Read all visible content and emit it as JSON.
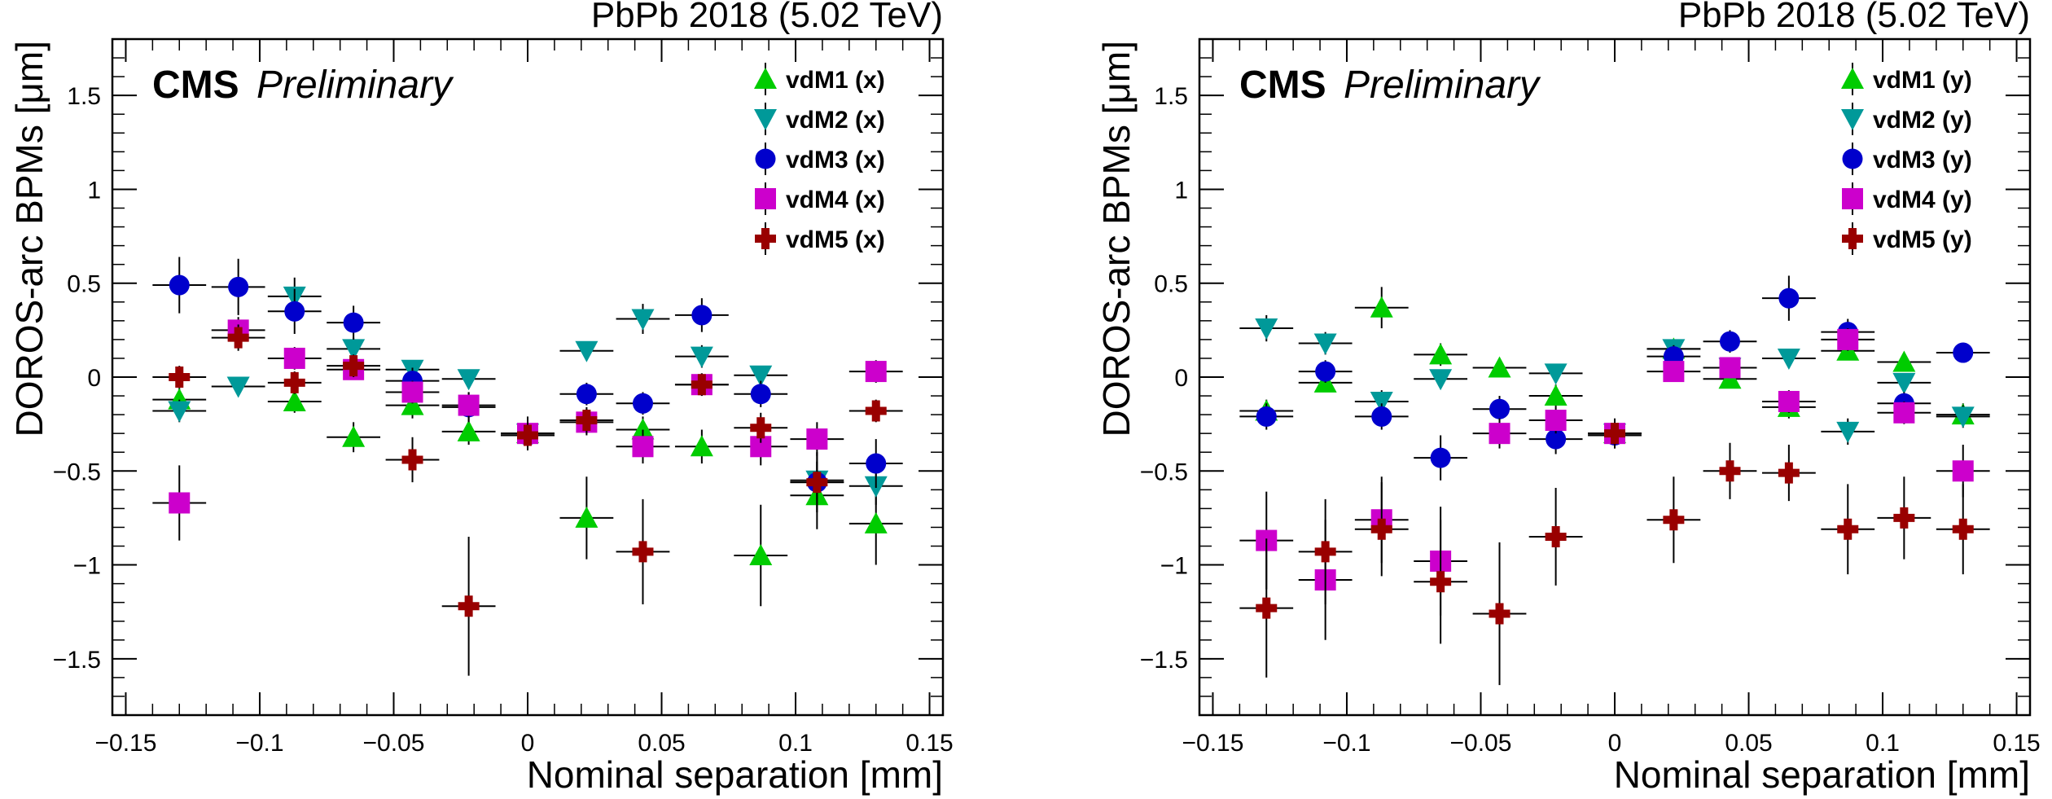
{
  "chart_data": [
    {
      "type": "scatter",
      "top_label": "PbPb 2018 (5.02 TeV)",
      "cms_label": "CMS",
      "preliminary_label": "Preliminary",
      "xlabel": "Nominal separation [mm]",
      "ylabel": "DOROS-arc BPMs [μm]",
      "xlim": [
        -0.155,
        0.155
      ],
      "ylim": [
        -1.8,
        1.8
      ],
      "xticks": [
        -0.15,
        -0.1,
        -0.05,
        0,
        0.05,
        0.1,
        0.15
      ],
      "xtick_labels": [
        "−0.15",
        "−0.1",
        "−0.05",
        "0",
        "0.05",
        "0.1",
        "0.15"
      ],
      "yticks": [
        -1.5,
        -1,
        -0.5,
        0,
        0.5,
        1,
        1.5
      ],
      "ytick_labels": [
        "−1.5",
        "−1",
        "−0.5",
        "0",
        "0.5",
        "1",
        "1.5"
      ],
      "legend_position": "top-right",
      "xerr": 0.01,
      "series": [
        {
          "name": "vdM1 (x)",
          "marker": "triangle-up",
          "color": "#00cc00",
          "points": [
            [
              -0.13,
              -0.12,
              0.06
            ],
            [
              -0.087,
              -0.13,
              0.06
            ],
            [
              -0.065,
              -0.32,
              0.08
            ],
            [
              -0.043,
              -0.15,
              0.07
            ],
            [
              -0.022,
              -0.29,
              0.07
            ],
            [
              0,
              -0.3,
              0.09
            ],
            [
              0.022,
              -0.75,
              0.22
            ],
            [
              0.043,
              -0.28,
              0.07
            ],
            [
              0.065,
              -0.37,
              0.09
            ],
            [
              0.087,
              -0.95,
              0.27
            ],
            [
              0.108,
              -0.63,
              0.18
            ],
            [
              0.13,
              -0.78,
              0.22
            ]
          ]
        },
        {
          "name": "vdM2 (x)",
          "marker": "triangle-down",
          "color": "#009999",
          "points": [
            [
              -0.13,
              -0.18,
              0.06
            ],
            [
              -0.108,
              -0.05,
              0.05
            ],
            [
              -0.087,
              0.43,
              0.1
            ],
            [
              -0.065,
              0.15,
              0.06
            ],
            [
              -0.043,
              0.04,
              0.05
            ],
            [
              -0.022,
              -0.01,
              0.05
            ],
            [
              0,
              -0.3,
              0.07
            ],
            [
              0.022,
              0.14,
              0.05
            ],
            [
              0.043,
              0.31,
              0.08
            ],
            [
              0.065,
              0.11,
              0.06
            ],
            [
              0.087,
              0.01,
              0.05
            ],
            [
              0.108,
              -0.55,
              0.1
            ],
            [
              0.13,
              -0.58,
              0.1
            ]
          ]
        },
        {
          "name": "vdM3 (x)",
          "marker": "circle",
          "color": "#0000cc",
          "points": [
            [
              -0.13,
              0.49,
              0.15
            ],
            [
              -0.108,
              0.48,
              0.15
            ],
            [
              -0.087,
              0.35,
              0.12
            ],
            [
              -0.065,
              0.29,
              0.09
            ],
            [
              -0.043,
              -0.02,
              0.07
            ],
            [
              -0.022,
              -0.16,
              0.08
            ],
            [
              0,
              -0.31,
              0.07
            ],
            [
              0.022,
              -0.09,
              0.06
            ],
            [
              0.043,
              -0.14,
              0.06
            ],
            [
              0.065,
              0.33,
              0.09
            ],
            [
              0.087,
              -0.09,
              0.07
            ],
            [
              0.108,
              -0.56,
              0.16
            ],
            [
              0.13,
              -0.46,
              0.13
            ]
          ]
        },
        {
          "name": "vdM4 (x)",
          "marker": "square",
          "color": "#cc00cc",
          "points": [
            [
              -0.13,
              -0.67,
              0.2
            ],
            [
              -0.108,
              0.25,
              0.07
            ],
            [
              -0.087,
              0.1,
              0.06
            ],
            [
              -0.065,
              0.04,
              0.05
            ],
            [
              -0.043,
              -0.08,
              0.06
            ],
            [
              -0.022,
              -0.15,
              0.07
            ],
            [
              0,
              -0.3,
              0.07
            ],
            [
              0.022,
              -0.24,
              0.07
            ],
            [
              0.043,
              -0.37,
              0.09
            ],
            [
              0.065,
              -0.04,
              0.06
            ],
            [
              0.087,
              -0.37,
              0.1
            ],
            [
              0.108,
              -0.33,
              0.09
            ],
            [
              0.13,
              0.03,
              0.06
            ]
          ]
        },
        {
          "name": "vdM5 (x)",
          "marker": "cross",
          "color": "#990000",
          "points": [
            [
              -0.13,
              0.0,
              0.06
            ],
            [
              -0.108,
              0.21,
              0.07
            ],
            [
              -0.087,
              -0.03,
              0.06
            ],
            [
              -0.065,
              0.06,
              0.06
            ],
            [
              -0.043,
              -0.44,
              0.12
            ],
            [
              -0.022,
              -1.22,
              0.37
            ],
            [
              0,
              -0.31,
              0.08
            ],
            [
              0.022,
              -0.23,
              0.07
            ],
            [
              0.043,
              -0.93,
              0.28
            ],
            [
              0.065,
              -0.04,
              0.06
            ],
            [
              0.087,
              -0.27,
              0.08
            ],
            [
              0.108,
              -0.56,
              0.16
            ],
            [
              0.13,
              -0.18,
              0.06
            ]
          ]
        }
      ]
    },
    {
      "type": "scatter",
      "top_label": "PbPb 2018 (5.02 TeV)",
      "cms_label": "CMS",
      "preliminary_label": "Preliminary",
      "xlabel": "Nominal separation [mm]",
      "ylabel": "DOROS-arc BPMs [μm]",
      "xlim": [
        -0.155,
        0.155
      ],
      "ylim": [
        -1.8,
        1.8
      ],
      "xticks": [
        -0.15,
        -0.1,
        -0.05,
        0,
        0.05,
        0.1,
        0.15
      ],
      "xtick_labels": [
        "−0.15",
        "−0.1",
        "−0.05",
        "0",
        "0.05",
        "0.1",
        "0.15"
      ],
      "yticks": [
        -1.5,
        -1,
        -0.5,
        0,
        0.5,
        1,
        1.5
      ],
      "ytick_labels": [
        "−1.5",
        "−1",
        "−0.5",
        "0",
        "0.5",
        "1",
        "1.5"
      ],
      "legend_position": "top-right",
      "xerr": 0.01,
      "series": [
        {
          "name": "vdM1 (y)",
          "marker": "triangle-up",
          "color": "#00cc00",
          "points": [
            [
              -0.13,
              -0.18,
              0.06
            ],
            [
              -0.108,
              -0.03,
              0.05
            ],
            [
              -0.087,
              0.37,
              0.11
            ],
            [
              -0.065,
              0.12,
              0.06
            ],
            [
              -0.043,
              0.05,
              0.05
            ],
            [
              -0.022,
              -0.1,
              0.06
            ],
            [
              0,
              -0.3,
              0.07
            ],
            [
              0.022,
              0.15,
              0.05
            ],
            [
              0.043,
              -0.01,
              0.05
            ],
            [
              0.065,
              -0.16,
              0.06
            ],
            [
              0.087,
              0.14,
              0.05
            ],
            [
              0.108,
              0.08,
              0.05
            ],
            [
              0.13,
              -0.2,
              0.06
            ]
          ]
        },
        {
          "name": "vdM2 (y)",
          "marker": "triangle-down",
          "color": "#009999",
          "points": [
            [
              -0.13,
              0.26,
              0.07
            ],
            [
              -0.108,
              0.18,
              0.06
            ],
            [
              -0.087,
              -0.13,
              0.06
            ],
            [
              -0.065,
              -0.01,
              0.05
            ],
            [
              -0.022,
              0.02,
              0.05
            ],
            [
              0,
              -0.3,
              0.07
            ],
            [
              0.022,
              0.15,
              0.05
            ],
            [
              0.043,
              0.05,
              0.05
            ],
            [
              0.065,
              0.1,
              0.05
            ],
            [
              0.087,
              -0.29,
              0.07
            ],
            [
              0.108,
              -0.03,
              0.05
            ],
            [
              0.13,
              -0.21,
              0.06
            ]
          ]
        },
        {
          "name": "vdM3 (y)",
          "marker": "circle",
          "color": "#0000cc",
          "points": [
            [
              -0.13,
              -0.21,
              0.07
            ],
            [
              -0.108,
              0.03,
              0.06
            ],
            [
              -0.087,
              -0.21,
              0.07
            ],
            [
              -0.065,
              -0.43,
              0.12
            ],
            [
              -0.043,
              -0.17,
              0.07
            ],
            [
              -0.022,
              -0.33,
              0.08
            ],
            [
              0,
              -0.31,
              0.07
            ],
            [
              0.022,
              0.11,
              0.06
            ],
            [
              0.043,
              0.19,
              0.06
            ],
            [
              0.065,
              0.42,
              0.12
            ],
            [
              0.087,
              0.24,
              0.07
            ],
            [
              0.108,
              -0.14,
              0.06
            ],
            [
              0.13,
              0.13,
              0.05
            ]
          ]
        },
        {
          "name": "vdM4 (y)",
          "marker": "square",
          "color": "#cc00cc",
          "points": [
            [
              -0.13,
              -0.87,
              0.26
            ],
            [
              -0.108,
              -1.08,
              0.32
            ],
            [
              -0.087,
              -0.76,
              0.23
            ],
            [
              -0.065,
              -0.98,
              0.29
            ],
            [
              -0.043,
              -0.3,
              0.08
            ],
            [
              -0.022,
              -0.23,
              0.07
            ],
            [
              0,
              -0.3,
              0.07
            ],
            [
              0.022,
              0.03,
              0.05
            ],
            [
              0.043,
              0.05,
              0.05
            ],
            [
              0.065,
              -0.13,
              0.06
            ],
            [
              0.087,
              0.2,
              0.06
            ],
            [
              0.108,
              -0.19,
              0.06
            ],
            [
              0.13,
              -0.5,
              0.14
            ]
          ]
        },
        {
          "name": "vdM5 (y)",
          "marker": "cross",
          "color": "#990000",
          "points": [
            [
              -0.13,
              -1.23,
              0.37
            ],
            [
              -0.108,
              -0.93,
              0.28
            ],
            [
              -0.087,
              -0.81,
              0.25
            ],
            [
              -0.065,
              -1.09,
              0.33
            ],
            [
              -0.043,
              -1.26,
              0.38
            ],
            [
              -0.022,
              -0.85,
              0.26
            ],
            [
              0,
              -0.3,
              0.08
            ],
            [
              0.022,
              -0.76,
              0.23
            ],
            [
              0.043,
              -0.5,
              0.15
            ],
            [
              0.065,
              -0.51,
              0.15
            ],
            [
              0.087,
              -0.81,
              0.24
            ],
            [
              0.108,
              -0.75,
              0.22
            ],
            [
              0.13,
              -0.81,
              0.24
            ]
          ]
        }
      ]
    }
  ]
}
